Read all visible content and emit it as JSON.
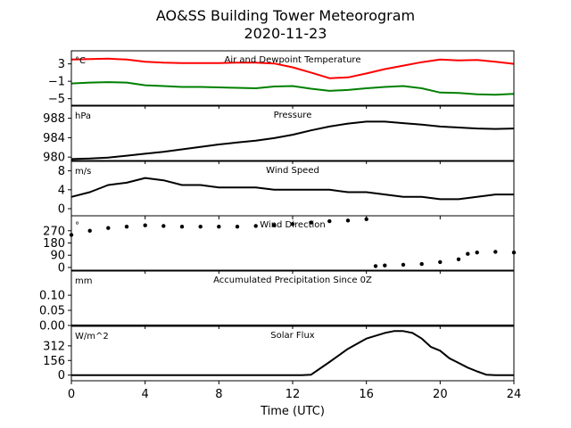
{
  "title": "AO&SS Building Tower Meteorogram",
  "subtitle": "2020-11-23",
  "x_axis": {
    "label": "Time (UTC)",
    "range": [
      0,
      24
    ],
    "ticks": [
      0,
      4,
      8,
      12,
      16,
      20,
      24
    ]
  },
  "colors": {
    "temperature": "#ff0000",
    "dewpoint": "#008000",
    "line": "#000000"
  },
  "chart_data": [
    {
      "type": "line",
      "title": "Air and Dewpoint Temperature",
      "unit": "°C",
      "ylim": [
        -6.5,
        6
      ],
      "yticks": [
        3,
        -1,
        -5
      ],
      "ytick_labels": [
        "3",
        "−1",
        "−5"
      ],
      "x": [
        0,
        1,
        2,
        3,
        4,
        5,
        6,
        7,
        8,
        9,
        10,
        11,
        12,
        13,
        14,
        15,
        16,
        17,
        18,
        19,
        20,
        21,
        22,
        23,
        24
      ],
      "series": [
        {
          "values": [
            4.0,
            4.1,
            4.2,
            4.0,
            3.5,
            3.3,
            3.2,
            3.2,
            3.2,
            3.3,
            3.3,
            3.1,
            2.2,
            1.0,
            -0.3,
            -0.1,
            0.8,
            1.8,
            2.6,
            3.4,
            4.0,
            3.8,
            3.9,
            3.5,
            3.0
          ],
          "color": "#ff0000"
        },
        {
          "values": [
            -1.5,
            -1.3,
            -1.2,
            -1.3,
            -1.9,
            -2.1,
            -2.3,
            -2.3,
            -2.4,
            -2.5,
            -2.6,
            -2.2,
            -2.1,
            -2.7,
            -3.2,
            -3.0,
            -2.6,
            -2.3,
            -2.1,
            -2.6,
            -3.6,
            -3.7,
            -4.0,
            -4.1,
            -3.9
          ],
          "color": "#008000"
        }
      ]
    },
    {
      "type": "line",
      "title": "Pressure",
      "unit": "hPa",
      "ylim": [
        979.3,
        990.5
      ],
      "yticks": [
        980,
        984,
        988
      ],
      "x": [
        0,
        1,
        2,
        3,
        4,
        5,
        6,
        7,
        8,
        9,
        10,
        11,
        12,
        13,
        14,
        15,
        16,
        17,
        18,
        19,
        20,
        21,
        22,
        23,
        24
      ],
      "series": [
        {
          "values": [
            979.6,
            979.7,
            979.9,
            980.3,
            980.7,
            981.1,
            981.6,
            982.1,
            982.6,
            983.0,
            983.4,
            983.9,
            984.6,
            985.5,
            986.3,
            986.9,
            987.3,
            987.3,
            987.0,
            986.7,
            986.3,
            986.1,
            985.9,
            985.8,
            985.9
          ],
          "color": "#000000"
        }
      ]
    },
    {
      "type": "line",
      "title": "Wind Speed",
      "unit": "m/s",
      "ylim": [
        -1.5,
        10
      ],
      "yticks": [
        0,
        4,
        8
      ],
      "x": [
        0,
        1,
        2,
        3,
        4,
        5,
        6,
        7,
        8,
        9,
        10,
        11,
        12,
        13,
        14,
        15,
        16,
        17,
        18,
        19,
        20,
        21,
        22,
        23,
        24
      ],
      "series": [
        {
          "values": [
            2.5,
            3.5,
            5.0,
            5.5,
            6.5,
            6.0,
            5.0,
            5.0,
            4.5,
            4.5,
            4.5,
            4.0,
            4.0,
            4.0,
            4.0,
            3.5,
            3.5,
            3.0,
            2.5,
            2.5,
            2.0,
            2.0,
            2.5,
            3.0,
            3.0
          ],
          "color": "#000000"
        }
      ]
    },
    {
      "type": "scatter",
      "title": "Wind Direction",
      "unit": "°",
      "ylim": [
        -20,
        380
      ],
      "yticks": [
        0,
        90,
        180,
        270
      ],
      "x": [
        0,
        1,
        2,
        3,
        4,
        5,
        6,
        7,
        8,
        9,
        10,
        11,
        12,
        13,
        14,
        15,
        16,
        16.5,
        17,
        18,
        19,
        20,
        21,
        21.5,
        22,
        23,
        24
      ],
      "series": [
        {
          "values": [
            240,
            270,
            290,
            300,
            310,
            305,
            300,
            300,
            300,
            300,
            305,
            310,
            320,
            330,
            340,
            345,
            355,
            10,
            15,
            20,
            25,
            40,
            60,
            100,
            110,
            115,
            110
          ],
          "color": "#000000"
        }
      ]
    },
    {
      "type": "line",
      "title": "Accumulated Precipitation Since 0Z",
      "unit": "mm",
      "ylim": [
        0,
        0.18
      ],
      "yticks": [
        0.0,
        0.05,
        0.1
      ],
      "ytick_labels": [
        "0.00",
        "0.05",
        "0.10"
      ],
      "x": [
        0,
        24
      ],
      "series": [
        {
          "values": [
            0,
            0
          ],
          "color": "#000000"
        }
      ]
    },
    {
      "type": "line",
      "title": "Solar Flux",
      "unit": "W/m^2",
      "ylim": [
        -60,
        520
      ],
      "yticks": [
        0,
        156,
        312
      ],
      "x": [
        0,
        12.5,
        13,
        14,
        15,
        16,
        17,
        17.5,
        18,
        18.5,
        19,
        19.5,
        20,
        20.5,
        21,
        21.5,
        22,
        22.5,
        23,
        24
      ],
      "series": [
        {
          "values": [
            0,
            0,
            5,
            140,
            280,
            390,
            450,
            470,
            470,
            450,
            390,
            300,
            260,
            180,
            130,
            80,
            40,
            5,
            0,
            0
          ],
          "color": "#000000"
        }
      ]
    }
  ]
}
